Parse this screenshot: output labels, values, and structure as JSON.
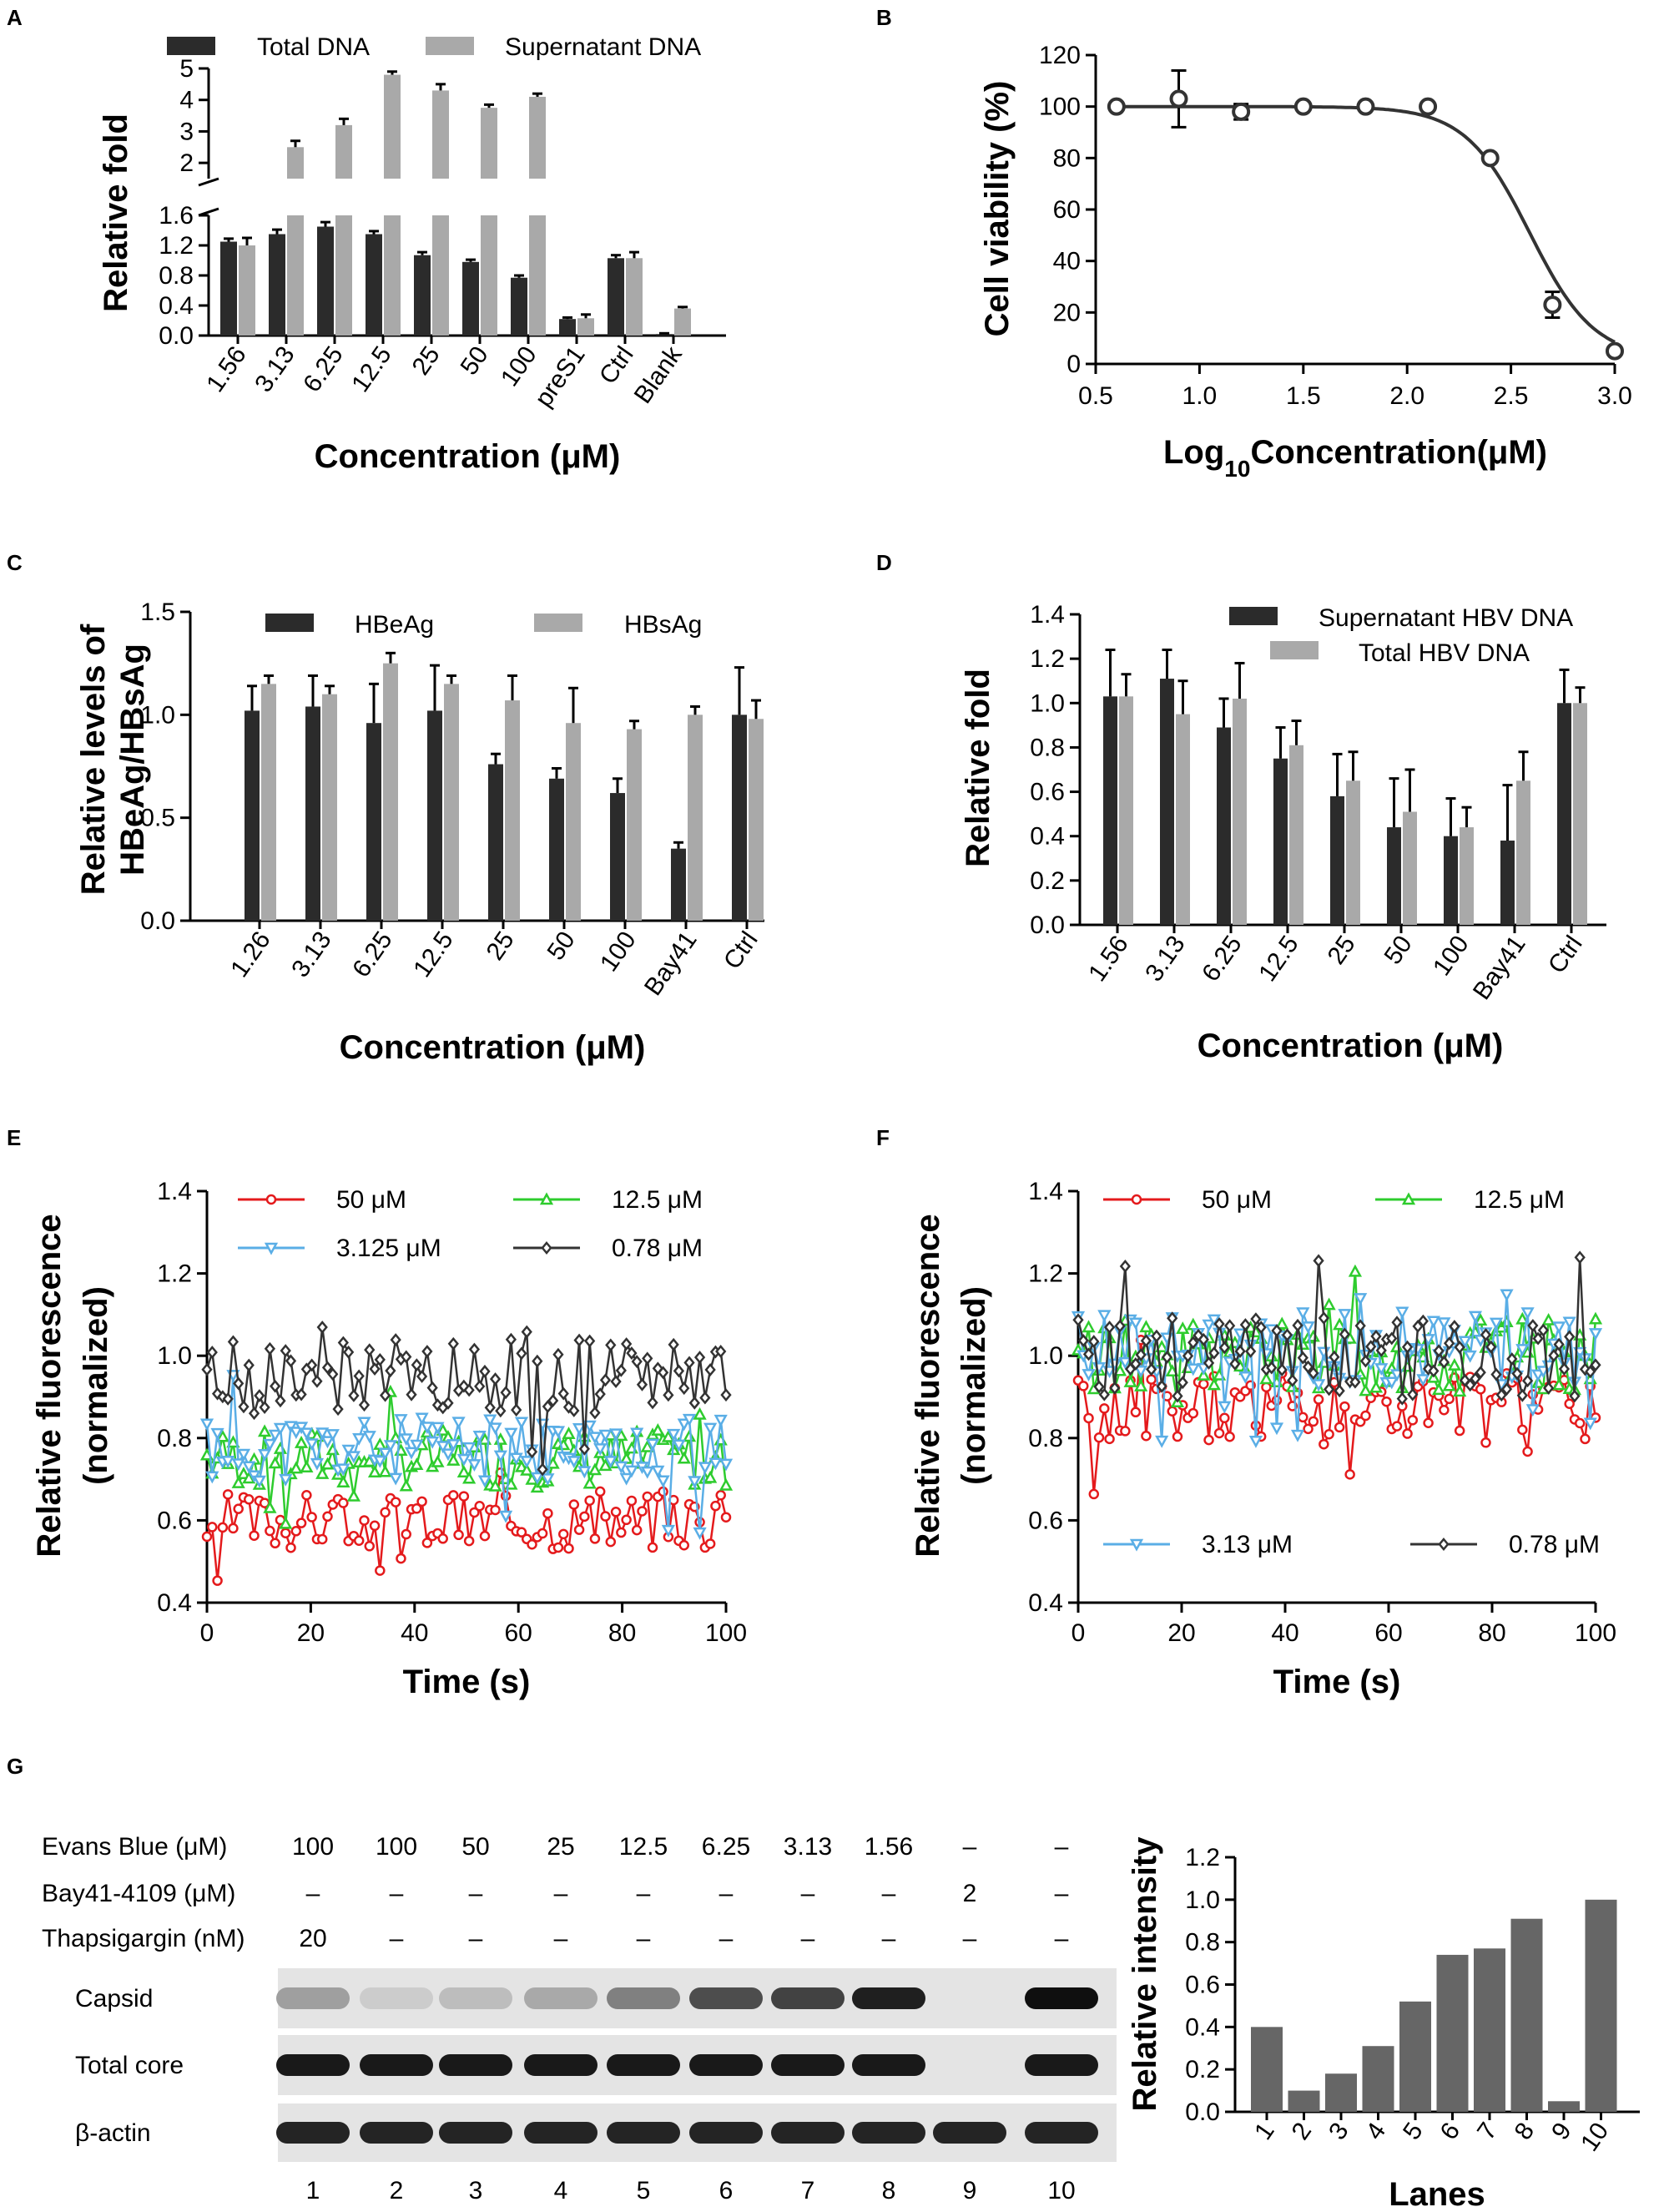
{
  "colors": {
    "dark": "#2b2b2b",
    "grey": "#a9a9a9",
    "red": "#e41a1c",
    "green": "#2ecc2e",
    "blue": "#5aaee6",
    "black": "#333333",
    "bar": "#666666"
  },
  "panels": {
    "A": "A",
    "B": "B",
    "C": "C",
    "D": "D",
    "E": "E",
    "F": "F",
    "G": "G"
  },
  "chart_data": [
    {
      "id": "A",
      "type": "bar",
      "categories": [
        "1.56",
        "3.13",
        "6.25",
        "12.5",
        "25",
        "50",
        "100",
        "preS1",
        "Ctrl",
        "Blank"
      ],
      "series": [
        {
          "name": "Total DNA",
          "values": [
            1.25,
            1.35,
            1.45,
            1.35,
            1.07,
            0.98,
            0.77,
            0.22,
            1.03,
            0.02
          ],
          "errors": [
            0.04,
            0.06,
            0.06,
            0.04,
            0.04,
            0.03,
            0.03,
            0.02,
            0.04,
            0.01
          ]
        },
        {
          "name": "Supernatant DNA",
          "values": [
            1.2,
            2.5,
            3.2,
            4.8,
            4.3,
            3.75,
            4.1,
            0.23,
            1.03,
            0.36
          ],
          "errors": [
            0.1,
            0.2,
            0.2,
            0.1,
            0.2,
            0.1,
            0.1,
            0.05,
            0.08,
            0.02
          ]
        }
      ],
      "ylabel": "Relative fold",
      "xlabel": "Concentration (μM)",
      "ylim_lower": [
        0,
        1.6
      ],
      "ylim_upper": [
        1.5,
        5
      ],
      "yticks_lower": [
        "0.0",
        "0.4",
        "0.8",
        "1.2",
        "1.6"
      ],
      "yticks_upper": [
        "2",
        "3",
        "4",
        "5"
      ]
    },
    {
      "id": "B",
      "type": "scatter",
      "x": [
        0.6,
        0.9,
        1.2,
        1.5,
        1.8,
        2.1,
        2.4,
        2.7,
        3.0
      ],
      "y": [
        100,
        103,
        98,
        100,
        100,
        100,
        80,
        23,
        5
      ],
      "errors": [
        1,
        11,
        3,
        1,
        1,
        1,
        1,
        5,
        1
      ],
      "fit": {
        "top": 100,
        "bottom": 2,
        "logEC50": 2.59,
        "hill": -2.8
      },
      "xlim": [
        0.5,
        3.0
      ],
      "ylim": [
        0,
        120
      ],
      "xticks": [
        "0.5",
        "1.0",
        "1.5",
        "2.0",
        "2.5",
        "3.0"
      ],
      "yticks": [
        "0",
        "20",
        "40",
        "60",
        "80",
        "100",
        "120"
      ],
      "ylabel": "Cell viability (%)",
      "xlabel_prefix": "Log",
      "xlabel_sub": "10",
      "xlabel_suffix": "Concentration(μM)"
    },
    {
      "id": "C",
      "type": "bar",
      "categories": [
        "1.26",
        "3.13",
        "6.25",
        "12.5",
        "25",
        "50",
        "100",
        "Bay41",
        "Ctrl"
      ],
      "series": [
        {
          "name": "HBeAg",
          "values": [
            1.02,
            1.04,
            0.96,
            1.02,
            0.76,
            0.69,
            0.62,
            0.35,
            1.0
          ],
          "errors": [
            0.12,
            0.15,
            0.19,
            0.22,
            0.05,
            0.05,
            0.07,
            0.03,
            0.23
          ]
        },
        {
          "name": "HBsAg",
          "values": [
            1.15,
            1.1,
            1.25,
            1.15,
            1.07,
            0.96,
            0.93,
            1.0,
            0.98
          ],
          "errors": [
            0.04,
            0.04,
            0.05,
            0.04,
            0.12,
            0.17,
            0.04,
            0.04,
            0.09
          ]
        }
      ],
      "ylabel_line1": "Relative levels of",
      "ylabel_line2": "HBeAg/HBsAg",
      "xlabel": "Concentration (μM)",
      "ylim": [
        0,
        1.5
      ],
      "yticks": [
        "0.0",
        "0.5",
        "1.0",
        "1.5"
      ]
    },
    {
      "id": "D",
      "type": "bar",
      "categories": [
        "1.56",
        "3.13",
        "6.25",
        "12.5",
        "25",
        "50",
        "100",
        "Bay41",
        "Ctrl"
      ],
      "series": [
        {
          "name": "Supernatant HBV DNA",
          "values": [
            1.03,
            1.11,
            0.89,
            0.75,
            0.58,
            0.44,
            0.4,
            0.38,
            1.0
          ],
          "errors": [
            0.21,
            0.13,
            0.13,
            0.14,
            0.19,
            0.22,
            0.17,
            0.25,
            0.15
          ]
        },
        {
          "name": "Total HBV DNA",
          "values": [
            1.03,
            0.95,
            1.02,
            0.81,
            0.65,
            0.51,
            0.44,
            0.65,
            1.0
          ],
          "errors": [
            0.1,
            0.15,
            0.16,
            0.11,
            0.13,
            0.19,
            0.09,
            0.13,
            0.07
          ]
        }
      ],
      "ylabel": "Relative fold",
      "xlabel": "Concentration (μM)",
      "ylim": [
        0,
        1.4
      ],
      "yticks": [
        "0.0",
        "0.2",
        "0.4",
        "0.6",
        "0.8",
        "1.0",
        "1.2",
        "1.4"
      ]
    },
    {
      "id": "E",
      "type": "line",
      "x_range": [
        0,
        100
      ],
      "points": 100,
      "series": [
        {
          "name": "50 μM",
          "mean": 0.6,
          "spread": 0.07,
          "seed": 3,
          "color": "red",
          "marker": "circle"
        },
        {
          "name": "12.5 μM",
          "mean": 0.75,
          "spread": 0.07,
          "seed": 7,
          "color": "green",
          "marker": "triangle-up"
        },
        {
          "name": "3.125 μM",
          "mean": 0.77,
          "spread": 0.08,
          "seed": 11,
          "color": "blue",
          "marker": "triangle-down"
        },
        {
          "name": "0.78 μM",
          "mean": 0.95,
          "spread": 0.09,
          "seed": 19,
          "color": "black",
          "marker": "diamond"
        }
      ],
      "xlim": [
        0,
        100
      ],
      "ylim": [
        0.4,
        1.4
      ],
      "xticks": [
        "0",
        "20",
        "40",
        "60",
        "80",
        "100"
      ],
      "yticks": [
        "0.4",
        "0.6",
        "0.8",
        "1.0",
        "1.2",
        "1.4"
      ],
      "ylabel_line1": "Relative fluorescence",
      "ylabel_line2": "(normalized)",
      "xlabel": "Time (s)"
    },
    {
      "id": "F",
      "type": "line",
      "x_range": [
        0,
        100
      ],
      "points": 100,
      "series": [
        {
          "name": "50 μM",
          "mean": 0.87,
          "spread": 0.09,
          "seed": 5,
          "color": "red",
          "marker": "circle"
        },
        {
          "name": "12.5 μM",
          "mean": 1.0,
          "spread": 0.09,
          "seed": 13,
          "color": "green",
          "marker": "triangle-up"
        },
        {
          "name": "3.13 μM",
          "mean": 1.02,
          "spread": 0.09,
          "seed": 17,
          "color": "blue",
          "marker": "triangle-down"
        },
        {
          "name": "0.78 μM",
          "mean": 1.0,
          "spread": 0.1,
          "seed": 23,
          "color": "black",
          "marker": "diamond"
        }
      ],
      "xlim": [
        0,
        100
      ],
      "ylim": [
        0.4,
        1.4
      ],
      "xticks": [
        "0",
        "20",
        "40",
        "60",
        "80",
        "100"
      ],
      "yticks": [
        "0.4",
        "0.6",
        "0.8",
        "1.0",
        "1.2",
        "1.4"
      ],
      "ylabel_line1": "Relative fluorescence",
      "ylabel_line2": "(normalized)",
      "xlabel": "Time (s)"
    },
    {
      "id": "G",
      "type": "bar",
      "categories": [
        "1",
        "2",
        "3",
        "4",
        "5",
        "6",
        "7",
        "8",
        "9",
        "10"
      ],
      "values": [
        0.4,
        0.1,
        0.18,
        0.31,
        0.52,
        0.74,
        0.77,
        0.91,
        0.05,
        1.0
      ],
      "ylabel": "Relative intensity",
      "xlabel": "Lanes",
      "ylim": [
        0,
        1.2
      ],
      "yticks": [
        "0.0",
        "0.2",
        "0.4",
        "0.6",
        "0.8",
        "1.0",
        "1.2"
      ]
    }
  ],
  "blot": {
    "rows": [
      {
        "label": "Evans Blue (μM)",
        "values": [
          "100",
          "100",
          "50",
          "25",
          "12.5",
          "6.25",
          "3.13",
          "1.56",
          "–",
          "–"
        ]
      },
      {
        "label": "Bay41-4109 (μM)",
        "values": [
          "–",
          "–",
          "–",
          "–",
          "–",
          "–",
          "–",
          "–",
          "2",
          "–"
        ]
      },
      {
        "label": "Thapsigargin (nM)",
        "values": [
          "20",
          "–",
          "–",
          "–",
          "–",
          "–",
          "–",
          "–",
          "–",
          "–"
        ]
      }
    ],
    "bands": [
      {
        "label": "Capsid",
        "intensity": [
          0.3,
          0.08,
          0.15,
          0.25,
          0.45,
          0.7,
          0.75,
          0.92,
          0.0,
          1.0
        ]
      },
      {
        "label": "Total core",
        "intensity": [
          0.95,
          0.95,
          0.95,
          0.95,
          0.95,
          0.95,
          0.95,
          0.95,
          0.0,
          0.95
        ]
      },
      {
        "label": "β-actin",
        "intensity": [
          0.9,
          0.9,
          0.9,
          0.9,
          0.9,
          0.9,
          0.9,
          0.9,
          0.9,
          0.9
        ]
      }
    ],
    "lanes": [
      "1",
      "2",
      "3",
      "4",
      "5",
      "6",
      "7",
      "8",
      "9",
      "10"
    ]
  }
}
